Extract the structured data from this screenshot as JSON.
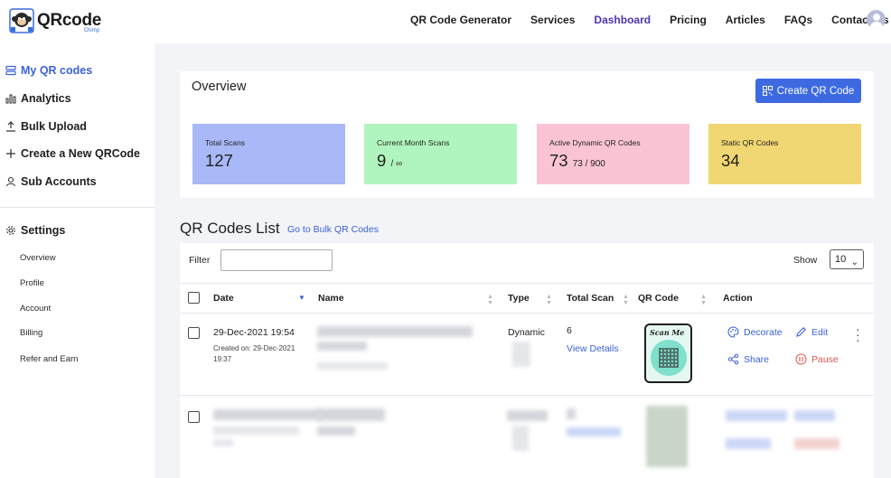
{
  "header": {
    "logo_main": "QRcode",
    "logo_sub": "Chimp",
    "nav": [
      {
        "label": "QR Code Generator"
      },
      {
        "label": "Services"
      },
      {
        "label": "Dashboard"
      },
      {
        "label": "Pricing"
      },
      {
        "label": "Articles"
      },
      {
        "label": "FAQs"
      },
      {
        "label": "Contact Us"
      }
    ],
    "active_nav": "Dashboard"
  },
  "sidebar": {
    "items": [
      {
        "label": "My QR codes",
        "icon": "list-icon"
      },
      {
        "label": "Analytics",
        "icon": "bar-chart-icon"
      },
      {
        "label": "Bulk Upload",
        "icon": "upload-icon"
      },
      {
        "label": "Create a New QRCode",
        "icon": "plus-icon"
      },
      {
        "label": "Sub Accounts",
        "icon": "user-icon"
      }
    ],
    "settings_label": "Settings",
    "settings_items": [
      {
        "label": "Overview"
      },
      {
        "label": "Profile"
      },
      {
        "label": "Account"
      },
      {
        "label": "Billing"
      },
      {
        "label": "Refer and Earn"
      }
    ]
  },
  "overview": {
    "title": "Overview",
    "create_label": "Create QR Code",
    "stats": [
      {
        "label": "Total Scans",
        "value": "127",
        "suffix": "",
        "color": "#a9b8f7"
      },
      {
        "label": "Current Month Scans",
        "value": "9",
        "suffix": "/ ∞",
        "color": "#b0f5bf"
      },
      {
        "label": "Active Dynamic QR Codes",
        "value": "73",
        "suffix": "73  / 900",
        "color": "#fbc4d4"
      },
      {
        "label": "Static QR Codes",
        "value": "34",
        "suffix": "",
        "color": "#f1d773"
      }
    ]
  },
  "list": {
    "title": "QR Codes List",
    "bulk_link": "Go to Bulk QR Codes",
    "filter_label": "Filter",
    "filter_value": "",
    "show_label": "Show",
    "show_value": "10",
    "columns": [
      "Date",
      "Name",
      "Type",
      "Total Scan",
      "QR Code",
      "Action"
    ],
    "row": {
      "date": "29-Dec-2021 19:54",
      "created": "Created on: 29-Dec-2021 19:37",
      "type": "Dynamic",
      "total_scan": "6",
      "view_details": "View Details",
      "qr_caption": "Scan Me",
      "actions": {
        "decorate": "Decorate",
        "edit": "Edit",
        "share": "Share",
        "pause": "Pause"
      }
    }
  }
}
